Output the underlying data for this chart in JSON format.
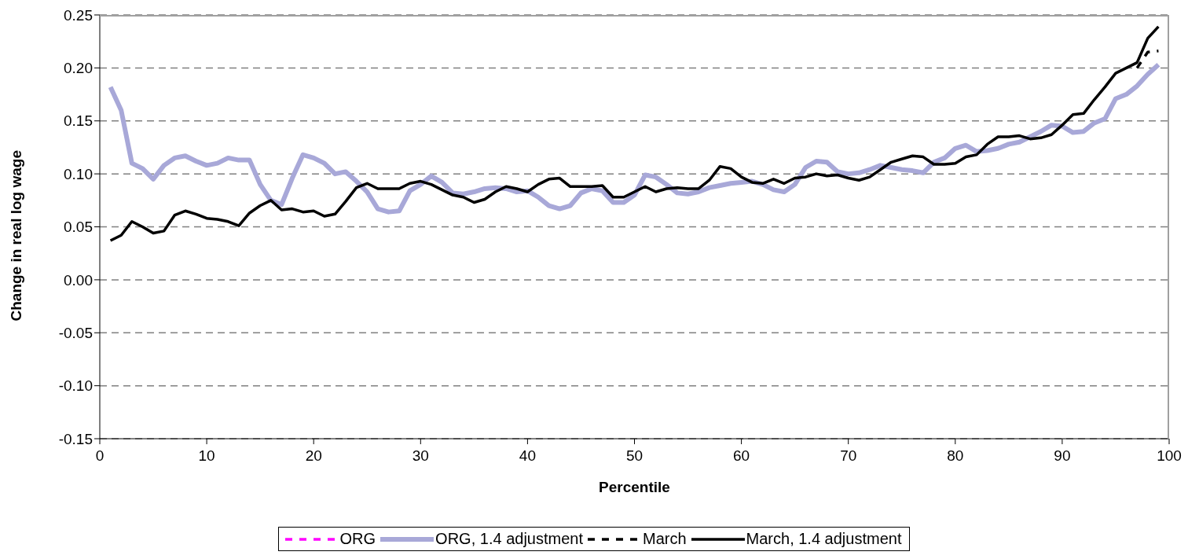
{
  "chart_data": {
    "type": "line",
    "xlabel": "Percentile",
    "ylabel": "Change in real log wage",
    "x": [
      1,
      2,
      3,
      4,
      5,
      6,
      7,
      8,
      9,
      10,
      11,
      12,
      13,
      14,
      15,
      16,
      17,
      18,
      19,
      20,
      21,
      22,
      23,
      24,
      25,
      26,
      27,
      28,
      29,
      30,
      31,
      32,
      33,
      34,
      35,
      36,
      37,
      38,
      39,
      40,
      41,
      42,
      43,
      44,
      45,
      46,
      47,
      48,
      49,
      50,
      51,
      52,
      53,
      54,
      55,
      56,
      57,
      58,
      59,
      60,
      61,
      62,
      63,
      64,
      65,
      66,
      67,
      68,
      69,
      70,
      71,
      72,
      73,
      74,
      75,
      76,
      77,
      78,
      79,
      80,
      81,
      82,
      83,
      84,
      85,
      86,
      87,
      88,
      89,
      90,
      91,
      92,
      93,
      94,
      95,
      96,
      97,
      98,
      99
    ],
    "series": [
      {
        "name": "ORG",
        "color": "#ff00ff",
        "line_style": "dashed",
        "values": [
          null,
          null,
          null,
          null,
          null,
          null,
          null,
          null,
          null,
          null,
          null,
          null,
          null,
          null,
          null,
          null,
          null,
          null,
          null,
          null,
          null,
          null,
          null,
          null,
          null,
          null,
          null,
          null,
          null,
          null,
          null,
          null,
          null,
          null,
          null,
          null,
          null,
          null,
          null,
          null,
          null,
          null,
          null,
          null,
          null,
          null,
          null,
          null,
          null,
          null,
          null,
          null,
          null,
          null,
          null,
          null,
          null,
          null,
          null,
          null,
          null,
          null,
          null,
          null,
          null,
          null,
          null,
          null,
          null,
          null,
          null,
          null,
          null,
          null,
          null,
          null,
          null,
          null,
          null,
          null,
          null,
          null,
          null,
          null,
          null,
          null,
          null,
          null,
          null,
          null,
          null,
          null,
          null,
          null,
          null,
          null,
          null,
          null,
          null
        ]
      },
      {
        "name": "ORG, 1.4 adjustment",
        "color": "#a8a8d8",
        "line_style": "solid",
        "values": [
          0.182,
          0.16,
          0.11,
          0.105,
          0.095,
          0.108,
          0.115,
          0.117,
          0.112,
          0.108,
          0.11,
          0.115,
          0.113,
          0.113,
          0.09,
          0.075,
          0.071,
          0.096,
          0.118,
          0.115,
          0.11,
          0.1,
          0.102,
          0.093,
          0.083,
          0.067,
          0.064,
          0.065,
          0.084,
          0.09,
          0.098,
          0.092,
          0.082,
          0.081,
          0.083,
          0.086,
          0.087,
          0.086,
          0.083,
          0.084,
          0.078,
          0.07,
          0.067,
          0.07,
          0.082,
          0.086,
          0.084,
          0.073,
          0.073,
          0.08,
          0.099,
          0.097,
          0.09,
          0.082,
          0.081,
          0.083,
          0.087,
          0.089,
          0.091,
          0.092,
          0.093,
          0.09,
          0.085,
          0.083,
          0.09,
          0.106,
          0.112,
          0.111,
          0.102,
          0.1,
          0.101,
          0.104,
          0.108,
          0.106,
          0.104,
          0.103,
          0.101,
          0.111,
          0.115,
          0.124,
          0.127,
          0.121,
          0.122,
          0.124,
          0.128,
          0.13,
          0.135,
          0.14,
          0.146,
          0.145,
          0.139,
          0.14,
          0.148,
          0.152,
          0.171,
          0.175,
          0.183,
          0.194,
          0.203
        ]
      },
      {
        "name": "March",
        "color": "#000000",
        "line_style": "dashed",
        "values": [
          null,
          null,
          null,
          null,
          null,
          null,
          null,
          null,
          null,
          null,
          null,
          null,
          null,
          null,
          null,
          null,
          null,
          null,
          null,
          null,
          null,
          null,
          null,
          null,
          null,
          null,
          null,
          null,
          null,
          null,
          null,
          null,
          null,
          null,
          null,
          null,
          null,
          null,
          null,
          null,
          null,
          null,
          null,
          null,
          null,
          null,
          null,
          null,
          null,
          null,
          null,
          null,
          null,
          null,
          null,
          null,
          null,
          null,
          null,
          null,
          null,
          null,
          null,
          null,
          null,
          null,
          null,
          null,
          null,
          null,
          null,
          null,
          null,
          null,
          null,
          null,
          null,
          null,
          null,
          null,
          null,
          null,
          null,
          null,
          null,
          null,
          null,
          null,
          null,
          null,
          null,
          null,
          null,
          null,
          null,
          null,
          0.2,
          0.215,
          0.216
        ]
      },
      {
        "name": "March, 1.4 adjustment",
        "color": "#000000",
        "line_style": "solid",
        "values": [
          0.037,
          0.042,
          0.055,
          0.05,
          0.044,
          0.046,
          0.061,
          0.065,
          0.062,
          0.058,
          0.057,
          0.055,
          0.051,
          0.063,
          0.07,
          0.075,
          0.066,
          0.067,
          0.064,
          0.065,
          0.06,
          0.062,
          0.074,
          0.087,
          0.091,
          0.086,
          0.086,
          0.086,
          0.091,
          0.093,
          0.09,
          0.085,
          0.08,
          0.078,
          0.073,
          0.076,
          0.083,
          0.088,
          0.086,
          0.083,
          0.09,
          0.095,
          0.096,
          0.088,
          0.088,
          0.088,
          0.089,
          0.078,
          0.078,
          0.083,
          0.088,
          0.083,
          0.086,
          0.087,
          0.086,
          0.086,
          0.094,
          0.107,
          0.105,
          0.097,
          0.092,
          0.091,
          0.095,
          0.091,
          0.096,
          0.097,
          0.1,
          0.098,
          0.099,
          0.096,
          0.094,
          0.097,
          0.104,
          0.111,
          0.114,
          0.117,
          0.116,
          0.109,
          0.109,
          0.11,
          0.116,
          0.118,
          0.128,
          0.135,
          0.135,
          0.136,
          0.133,
          0.134,
          0.137,
          0.146,
          0.156,
          0.157,
          0.17,
          0.182,
          0.195,
          0.2,
          0.205,
          0.228,
          0.239
        ]
      }
    ],
    "xlim": [
      0,
      100
    ],
    "xticks": [
      0,
      10,
      20,
      30,
      40,
      50,
      60,
      70,
      80,
      90,
      100
    ],
    "ylim": [
      -0.15,
      0.25
    ],
    "yticks": [
      {
        "value": -0.15,
        "label": "-0.15"
      },
      {
        "value": -0.1,
        "label": "-0.10"
      },
      {
        "value": -0.05,
        "label": "-0.05"
      },
      {
        "value": 0,
        "label": "0.00"
      },
      {
        "value": 0.05,
        "label": "0.05"
      },
      {
        "value": 0.1,
        "label": "0.10"
      },
      {
        "value": 0.15,
        "label": "0.15"
      },
      {
        "value": 0.2,
        "label": "0.20"
      },
      {
        "value": 0.25,
        "label": "0.25"
      }
    ],
    "grid": "y",
    "legend": "bottom",
    "marker": "none"
  }
}
